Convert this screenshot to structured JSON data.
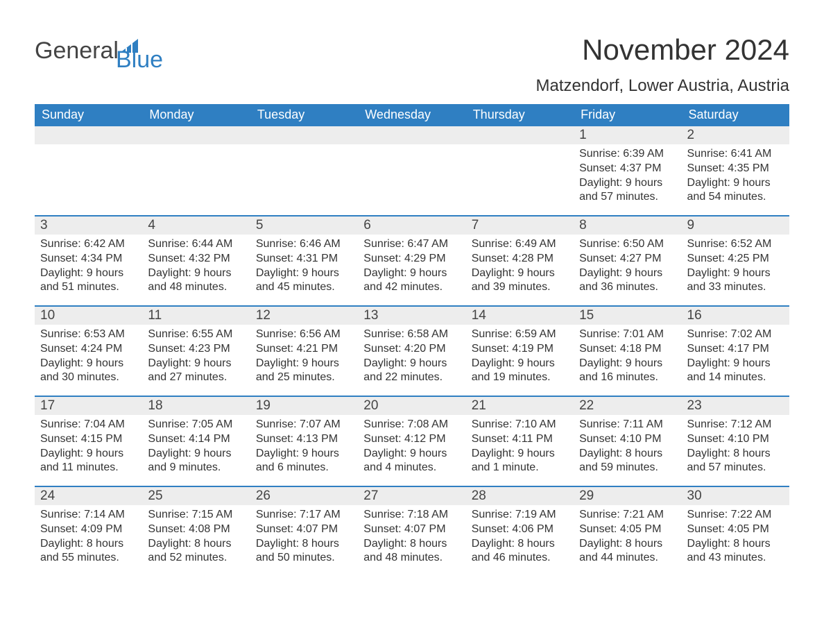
{
  "logo": {
    "word1": "General",
    "word2": "Blue"
  },
  "title": "November 2024",
  "location": "Matzendorf, Lower Austria, Austria",
  "colors": {
    "header_bg": "#2f7fc2",
    "header_text": "#ffffff",
    "day_num_bg": "#ededed",
    "week_sep": "#2f7fc2",
    "text": "#333333",
    "logo_gray": "#444444",
    "logo_blue": "#2f7fc2",
    "background": "#ffffff"
  },
  "typography": {
    "title_fontsize": 42,
    "location_fontsize": 24,
    "weekday_fontsize": 18,
    "daynum_fontsize": 19,
    "body_fontsize": 16,
    "logo_fontsize": 34
  },
  "weekdays": [
    "Sunday",
    "Monday",
    "Tuesday",
    "Wednesday",
    "Thursday",
    "Friday",
    "Saturday"
  ],
  "weeks": [
    [
      null,
      null,
      null,
      null,
      null,
      {
        "n": "1",
        "sr": "Sunrise: 6:39 AM",
        "ss": "Sunset: 4:37 PM",
        "d1": "Daylight: 9 hours",
        "d2": "and 57 minutes."
      },
      {
        "n": "2",
        "sr": "Sunrise: 6:41 AM",
        "ss": "Sunset: 4:35 PM",
        "d1": "Daylight: 9 hours",
        "d2": "and 54 minutes."
      }
    ],
    [
      {
        "n": "3",
        "sr": "Sunrise: 6:42 AM",
        "ss": "Sunset: 4:34 PM",
        "d1": "Daylight: 9 hours",
        "d2": "and 51 minutes."
      },
      {
        "n": "4",
        "sr": "Sunrise: 6:44 AM",
        "ss": "Sunset: 4:32 PM",
        "d1": "Daylight: 9 hours",
        "d2": "and 48 minutes."
      },
      {
        "n": "5",
        "sr": "Sunrise: 6:46 AM",
        "ss": "Sunset: 4:31 PM",
        "d1": "Daylight: 9 hours",
        "d2": "and 45 minutes."
      },
      {
        "n": "6",
        "sr": "Sunrise: 6:47 AM",
        "ss": "Sunset: 4:29 PM",
        "d1": "Daylight: 9 hours",
        "d2": "and 42 minutes."
      },
      {
        "n": "7",
        "sr": "Sunrise: 6:49 AM",
        "ss": "Sunset: 4:28 PM",
        "d1": "Daylight: 9 hours",
        "d2": "and 39 minutes."
      },
      {
        "n": "8",
        "sr": "Sunrise: 6:50 AM",
        "ss": "Sunset: 4:27 PM",
        "d1": "Daylight: 9 hours",
        "d2": "and 36 minutes."
      },
      {
        "n": "9",
        "sr": "Sunrise: 6:52 AM",
        "ss": "Sunset: 4:25 PM",
        "d1": "Daylight: 9 hours",
        "d2": "and 33 minutes."
      }
    ],
    [
      {
        "n": "10",
        "sr": "Sunrise: 6:53 AM",
        "ss": "Sunset: 4:24 PM",
        "d1": "Daylight: 9 hours",
        "d2": "and 30 minutes."
      },
      {
        "n": "11",
        "sr": "Sunrise: 6:55 AM",
        "ss": "Sunset: 4:23 PM",
        "d1": "Daylight: 9 hours",
        "d2": "and 27 minutes."
      },
      {
        "n": "12",
        "sr": "Sunrise: 6:56 AM",
        "ss": "Sunset: 4:21 PM",
        "d1": "Daylight: 9 hours",
        "d2": "and 25 minutes."
      },
      {
        "n": "13",
        "sr": "Sunrise: 6:58 AM",
        "ss": "Sunset: 4:20 PM",
        "d1": "Daylight: 9 hours",
        "d2": "and 22 minutes."
      },
      {
        "n": "14",
        "sr": "Sunrise: 6:59 AM",
        "ss": "Sunset: 4:19 PM",
        "d1": "Daylight: 9 hours",
        "d2": "and 19 minutes."
      },
      {
        "n": "15",
        "sr": "Sunrise: 7:01 AM",
        "ss": "Sunset: 4:18 PM",
        "d1": "Daylight: 9 hours",
        "d2": "and 16 minutes."
      },
      {
        "n": "16",
        "sr": "Sunrise: 7:02 AM",
        "ss": "Sunset: 4:17 PM",
        "d1": "Daylight: 9 hours",
        "d2": "and 14 minutes."
      }
    ],
    [
      {
        "n": "17",
        "sr": "Sunrise: 7:04 AM",
        "ss": "Sunset: 4:15 PM",
        "d1": "Daylight: 9 hours",
        "d2": "and 11 minutes."
      },
      {
        "n": "18",
        "sr": "Sunrise: 7:05 AM",
        "ss": "Sunset: 4:14 PM",
        "d1": "Daylight: 9 hours",
        "d2": "and 9 minutes."
      },
      {
        "n": "19",
        "sr": "Sunrise: 7:07 AM",
        "ss": "Sunset: 4:13 PM",
        "d1": "Daylight: 9 hours",
        "d2": "and 6 minutes."
      },
      {
        "n": "20",
        "sr": "Sunrise: 7:08 AM",
        "ss": "Sunset: 4:12 PM",
        "d1": "Daylight: 9 hours",
        "d2": "and 4 minutes."
      },
      {
        "n": "21",
        "sr": "Sunrise: 7:10 AM",
        "ss": "Sunset: 4:11 PM",
        "d1": "Daylight: 9 hours",
        "d2": "and 1 minute."
      },
      {
        "n": "22",
        "sr": "Sunrise: 7:11 AM",
        "ss": "Sunset: 4:10 PM",
        "d1": "Daylight: 8 hours",
        "d2": "and 59 minutes."
      },
      {
        "n": "23",
        "sr": "Sunrise: 7:12 AM",
        "ss": "Sunset: 4:10 PM",
        "d1": "Daylight: 8 hours",
        "d2": "and 57 minutes."
      }
    ],
    [
      {
        "n": "24",
        "sr": "Sunrise: 7:14 AM",
        "ss": "Sunset: 4:09 PM",
        "d1": "Daylight: 8 hours",
        "d2": "and 55 minutes."
      },
      {
        "n": "25",
        "sr": "Sunrise: 7:15 AM",
        "ss": "Sunset: 4:08 PM",
        "d1": "Daylight: 8 hours",
        "d2": "and 52 minutes."
      },
      {
        "n": "26",
        "sr": "Sunrise: 7:17 AM",
        "ss": "Sunset: 4:07 PM",
        "d1": "Daylight: 8 hours",
        "d2": "and 50 minutes."
      },
      {
        "n": "27",
        "sr": "Sunrise: 7:18 AM",
        "ss": "Sunset: 4:07 PM",
        "d1": "Daylight: 8 hours",
        "d2": "and 48 minutes."
      },
      {
        "n": "28",
        "sr": "Sunrise: 7:19 AM",
        "ss": "Sunset: 4:06 PM",
        "d1": "Daylight: 8 hours",
        "d2": "and 46 minutes."
      },
      {
        "n": "29",
        "sr": "Sunrise: 7:21 AM",
        "ss": "Sunset: 4:05 PM",
        "d1": "Daylight: 8 hours",
        "d2": "and 44 minutes."
      },
      {
        "n": "30",
        "sr": "Sunrise: 7:22 AM",
        "ss": "Sunset: 4:05 PM",
        "d1": "Daylight: 8 hours",
        "d2": "and 43 minutes."
      }
    ]
  ]
}
